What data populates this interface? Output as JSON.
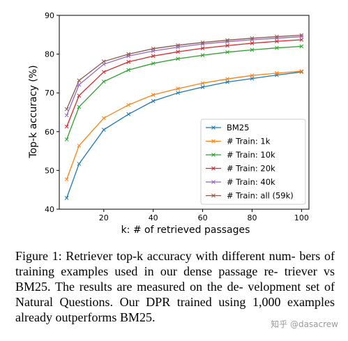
{
  "chart_data": {
    "type": "line",
    "xlabel": "k: # of retrieved passages",
    "ylabel": "Top-k accuracy (%)",
    "xlim": [
      2,
      103
    ],
    "ylim": [
      40,
      90
    ],
    "xticks": [
      20,
      40,
      60,
      80,
      100
    ],
    "yticks": [
      40,
      50,
      60,
      70,
      80,
      90
    ],
    "grid": false,
    "legend_position": "bottom-right",
    "x": [
      5,
      10,
      20,
      30,
      40,
      50,
      60,
      70,
      80,
      90,
      100
    ],
    "series": [
      {
        "name": "BM25",
        "color": "#1f77b4",
        "values": [
          42.9,
          51.7,
          60.5,
          64.5,
          67.9,
          70.0,
          71.5,
          72.8,
          73.7,
          74.6,
          75.4
        ]
      },
      {
        "name": "# Train: 1k",
        "color": "#ff7f0e",
        "values": [
          47.7,
          56.4,
          63.5,
          66.9,
          69.5,
          71.1,
          72.5,
          73.6,
          74.5,
          75.1,
          75.6
        ]
      },
      {
        "name": "# Train: 10k",
        "color": "#2ca02c",
        "values": [
          58.0,
          66.4,
          72.9,
          75.9,
          77.6,
          78.8,
          79.7,
          80.5,
          81.1,
          81.6,
          82.0
        ]
      },
      {
        "name": "# Train: 20k",
        "color": "#d62728",
        "values": [
          61.3,
          69.3,
          75.4,
          78.0,
          79.5,
          80.6,
          81.5,
          82.2,
          82.8,
          83.3,
          83.7
        ]
      },
      {
        "name": "# Train: 40k",
        "color": "#9467bd",
        "values": [
          64.2,
          72.1,
          77.4,
          79.5,
          80.8,
          81.8,
          82.6,
          83.2,
          83.7,
          84.1,
          84.5
        ]
      },
      {
        "name": "# Train: all (59k)",
        "color": "#8c564b",
        "values": [
          65.8,
          73.2,
          78.1,
          80.0,
          81.4,
          82.3,
          83.0,
          83.6,
          84.1,
          84.5,
          84.9
        ]
      }
    ]
  },
  "caption": {
    "lines": [
      "Figure 1: Retriever top-k accuracy with different num-",
      "bers of training examples used in our dense passage re-",
      "triever vs BM25. The results are measured on the de-",
      "velopment set of Natural Questions. Our DPR trained",
      "using 1,000 examples already outperforms BM25."
    ]
  },
  "watermark": "知乎 @dasacrew"
}
